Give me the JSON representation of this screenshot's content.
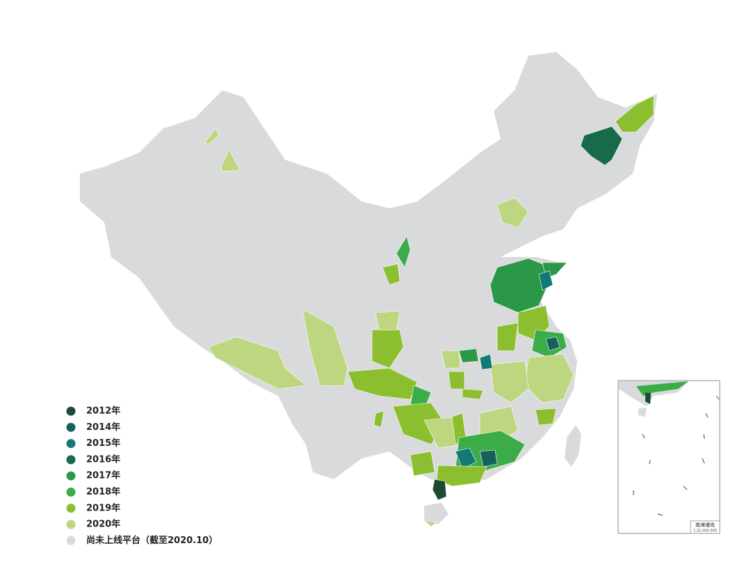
{
  "legend": [
    {
      "label": "2012年",
      "color": "#1c4a33"
    },
    {
      "label": "2014年",
      "color": "#17615b"
    },
    {
      "label": "2015年",
      "color": "#127a74"
    },
    {
      "label": "2016年",
      "color": "#176b48"
    },
    {
      "label": "2017年",
      "color": "#2a9847"
    },
    {
      "label": "2018年",
      "color": "#3cac49"
    },
    {
      "label": "2019年",
      "color": "#8cbf2f"
    },
    {
      "label": "2020年",
      "color": "#bed67f"
    },
    {
      "label": "尚未上线平台（截至2020.10）",
      "color": "#d9dadb"
    }
  ],
  "inset": {
    "title": "南海诸岛",
    "scale": "1:32 000 000"
  }
}
